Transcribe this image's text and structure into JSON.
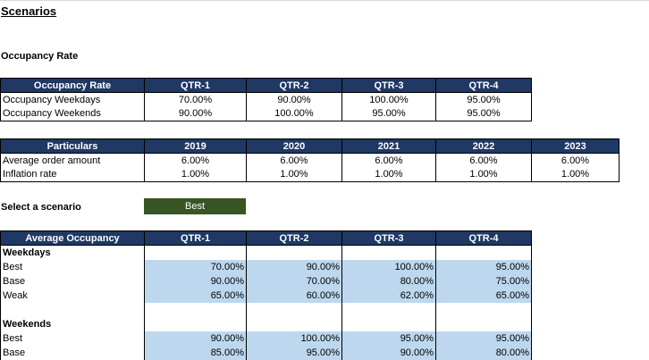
{
  "title": "Scenarios",
  "occupancy_section": {
    "heading": "Occupancy Rate"
  },
  "occupancy_table": {
    "headers": [
      "Occupancy Rate",
      "QTR-1",
      "QTR-2",
      "QTR-3",
      "QTR-4"
    ],
    "rows": [
      [
        "Occupancy Weekdays",
        "70.00%",
        "90.00%",
        "100.00%",
        "95.00%"
      ],
      [
        "Occupancy Weekends",
        "90.00%",
        "100.00%",
        "95.00%",
        "95.00%"
      ]
    ]
  },
  "particulars_table": {
    "headers": [
      "Particulars",
      "2019",
      "2020",
      "2021",
      "2022",
      "2023"
    ],
    "rows": [
      [
        "Average order amount",
        "6.00%",
        "6.00%",
        "6.00%",
        "6.00%",
        "6.00%"
      ],
      [
        "Inflation rate",
        "1.00%",
        "1.00%",
        "1.00%",
        "1.00%",
        "1.00%"
      ]
    ]
  },
  "scenario_select": {
    "label": "Select a scenario",
    "value": "Best"
  },
  "avg_occupancy_table": {
    "headers": [
      "Average Occupancy",
      "QTR-1",
      "QTR-2",
      "QTR-3",
      "QTR-4"
    ],
    "weekdays_label": "Weekdays",
    "weekdays_rows": [
      [
        "Best",
        "70.00%",
        "90.00%",
        "100.00%",
        "95.00%"
      ],
      [
        "Base",
        "90.00%",
        "70.00%",
        "80.00%",
        "75.00%"
      ],
      [
        "Weak",
        "65.00%",
        "60.00%",
        "62.00%",
        "65.00%"
      ]
    ],
    "weekends_label": "Weekends",
    "weekends_rows": [
      [
        "Best",
        "90.00%",
        "100.00%",
        "95.00%",
        "95.00%"
      ],
      [
        "Base",
        "85.00%",
        "95.00%",
        "90.00%",
        "80.00%"
      ]
    ]
  },
  "colors": {
    "header_bg": "#1f3864",
    "cell_blue": "#bdd7ee",
    "scenario_green": "#375623"
  }
}
